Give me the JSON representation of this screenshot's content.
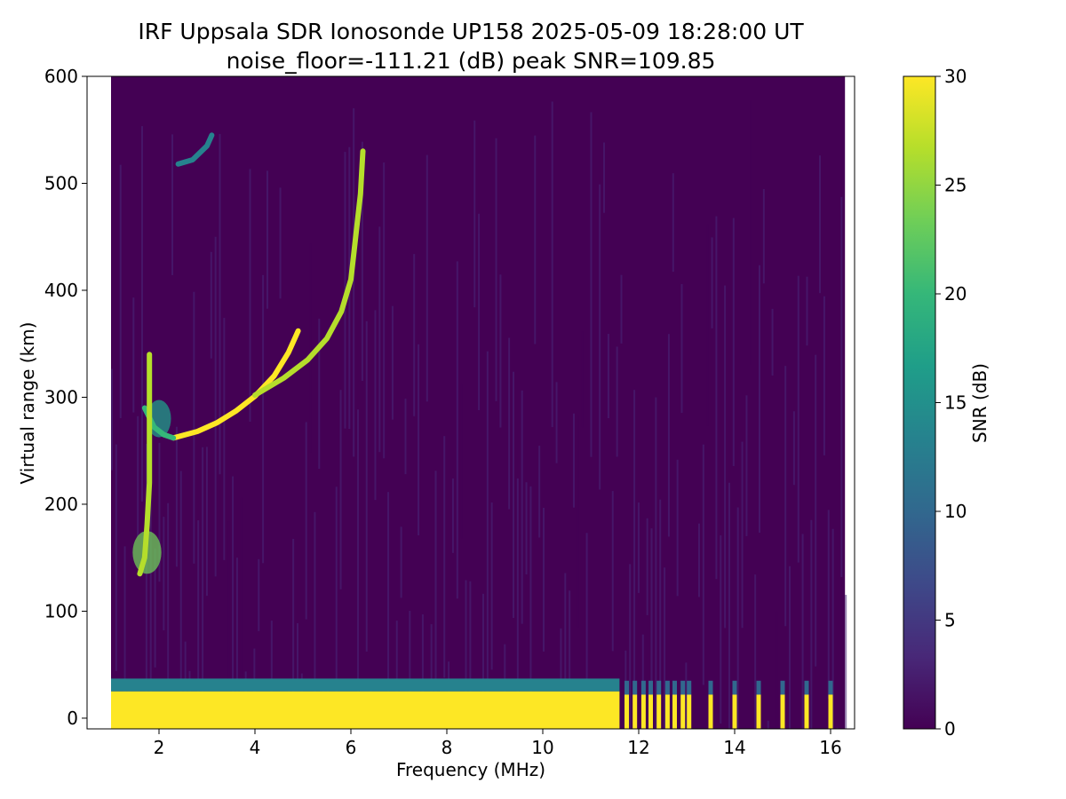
{
  "chart_data": {
    "type": "heatmap",
    "title": "IRF Uppsala SDR Ionosonde UP158 2025-05-09 18:28:00  UT",
    "subtitle": "noise_floor=-111.21 (dB) peak SNR=109.85",
    "xlabel": "Frequency (MHz)",
    "ylabel": "Virtual range (km)",
    "colorbar_label": "SNR (dB)",
    "colormap": "viridis",
    "colormap_colors": [
      "#440154",
      "#482878",
      "#3e4989",
      "#31688e",
      "#26828e",
      "#1f9e89",
      "#35b779",
      "#6ece58",
      "#b5de2b",
      "#fde725"
    ],
    "xlim": [
      0.5,
      16.5
    ],
    "ylim": [
      -10,
      600
    ],
    "clim": [
      0,
      30
    ],
    "data_freq_range_mhz": [
      1.0,
      16.3
    ],
    "x_ticks": [
      2,
      4,
      6,
      8,
      10,
      12,
      14,
      16
    ],
    "y_ticks": [
      0,
      100,
      200,
      300,
      400,
      500,
      600
    ],
    "colorbar_ticks": [
      0,
      5,
      10,
      15,
      20,
      25,
      30
    ],
    "background_snr_db": 1,
    "traces": [
      {
        "name": "",
        "snr_db": 30,
        "points": [
          [
            2.3,
            262
          ],
          [
            2.8,
            268
          ],
          [
            3.2,
            276
          ],
          [
            3.6,
            287
          ],
          [
            4.0,
            301
          ],
          [
            4.4,
            320
          ],
          [
            4.7,
            342
          ],
          [
            4.9,
            362
          ]
        ]
      },
      {
        "name": "",
        "snr_db": 25,
        "points": [
          [
            4.0,
            302
          ],
          [
            4.6,
            318
          ],
          [
            5.1,
            335
          ],
          [
            5.5,
            355
          ],
          [
            5.8,
            380
          ],
          [
            6.0,
            410
          ],
          [
            6.1,
            450
          ],
          [
            6.2,
            490
          ],
          [
            6.25,
            530
          ]
        ]
      },
      {
        "name": "",
        "snr_db": 20,
        "points": [
          [
            1.7,
            290
          ],
          [
            1.9,
            272
          ],
          [
            2.1,
            265
          ],
          [
            2.3,
            262
          ]
        ]
      },
      {
        "name": "",
        "snr_db": 28,
        "points": [
          [
            1.6,
            135
          ],
          [
            1.7,
            150
          ],
          [
            1.75,
            180
          ],
          [
            1.8,
            220
          ],
          [
            1.8,
            260
          ],
          [
            1.8,
            300
          ],
          [
            1.8,
            340
          ]
        ]
      },
      {
        "name": "",
        "snr_db": 12,
        "points": [
          [
            2.4,
            518
          ],
          [
            2.7,
            522
          ],
          [
            3.0,
            535
          ],
          [
            3.1,
            545
          ]
        ]
      }
    ],
    "blobs": [
      {
        "freq_mhz": 1.75,
        "range_km": 155,
        "width_mhz": 0.6,
        "height_km": 40,
        "snr_db": 22
      },
      {
        "freq_mhz": 2.0,
        "range_km": 280,
        "width_mhz": 0.5,
        "height_km": 35,
        "snr_db": 16
      }
    ],
    "near_range_band": {
      "freq_start_mhz": 1.0,
      "freq_end_mhz": 11.6,
      "range_top_km": 25,
      "snr_db": 30
    },
    "discrete_channels_mhz": [
      11.75,
      11.92,
      12.1,
      12.25,
      12.42,
      12.6,
      12.75,
      12.92,
      13.05,
      13.5,
      14.0,
      14.5,
      15.0,
      15.5,
      16.0
    ]
  }
}
